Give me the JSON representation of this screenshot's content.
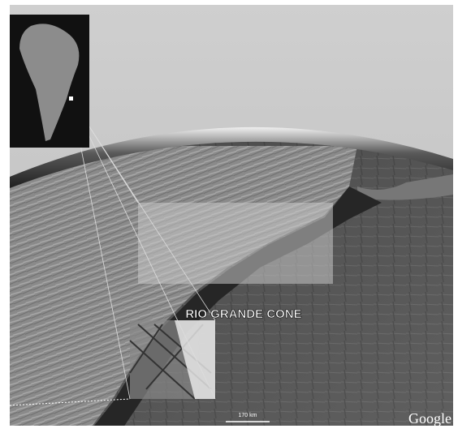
{
  "map": {
    "label": "RIO GRANDE CONE",
    "scale": "170 km",
    "attribution": "Google"
  }
}
